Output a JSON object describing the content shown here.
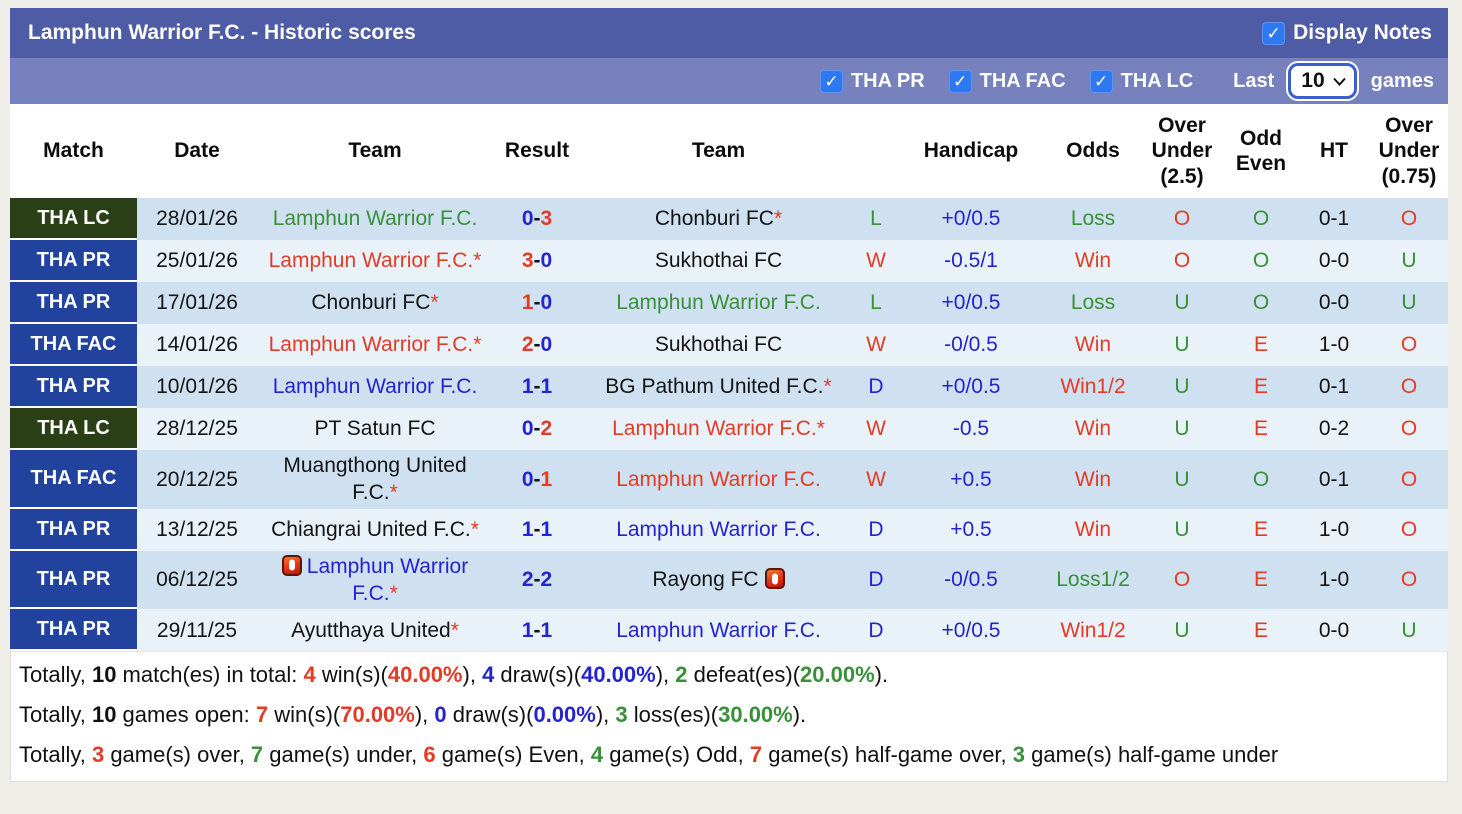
{
  "header": {
    "title": "Lamphun Warrior F.C. - Historic scores",
    "display_notes_label": "Display Notes",
    "display_notes_checked": true
  },
  "icons": {
    "checkmark": "✓",
    "red_card": "red-card-booking-icon"
  },
  "filters": {
    "leagues": [
      {
        "label": "THA PR",
        "checked": true
      },
      {
        "label": "THA FAC",
        "checked": true
      },
      {
        "label": "THA LC",
        "checked": true
      }
    ],
    "last_label": "Last",
    "last_value": "10",
    "games_label": "games"
  },
  "colors": {
    "bar_dark": "#4e5ca6",
    "bar_light": "#7681bd",
    "badge_blue": "#21439d",
    "badge_green": "#2a3f15",
    "row_dark": "#cfe1f0",
    "row_light": "#e9f2f9",
    "win_red": "#e33b26",
    "loss_green": "#389038",
    "draw_blue": "#2424cf"
  },
  "table": {
    "headers": [
      "Match",
      "Date",
      "Team",
      "Result",
      "Team",
      "",
      "Handicap",
      "Odds",
      "Over\nUnder\n(2.5)",
      "Odd\nEven",
      "HT",
      "Over\nUnder\n(0.75)"
    ],
    "rows": [
      {
        "league": "THA LC",
        "badge": "green",
        "date": "28/01/26",
        "home_name": "Lamphun Warrior F.C.",
        "home_star": "",
        "home_color": "green",
        "home_icon": false,
        "score_home": "0",
        "score_home_color": "blue",
        "score_away": "3",
        "score_away_color": "red",
        "away_name": "Chonburi FC",
        "away_star": "*",
        "away_color": "black",
        "away_icon": false,
        "wdl": "L",
        "wdl_color": "green",
        "handicap": "+0/0.5",
        "odds": "Loss",
        "odds_color": "green",
        "ou25": "O",
        "ou25_color": "red",
        "oe": "O",
        "oe_color": "green",
        "ht": "0-1",
        "ou075": "O",
        "ou075_color": "red"
      },
      {
        "league": "THA PR",
        "badge": "blue",
        "date": "25/01/26",
        "home_name": "Lamphun Warrior F.C.",
        "home_star": "*",
        "home_color": "red",
        "home_icon": false,
        "score_home": "3",
        "score_home_color": "red",
        "score_away": "0",
        "score_away_color": "blue",
        "away_name": "Sukhothai FC",
        "away_star": "",
        "away_color": "black",
        "away_icon": false,
        "wdl": "W",
        "wdl_color": "red",
        "handicap": "-0.5/1",
        "odds": "Win",
        "odds_color": "red",
        "ou25": "O",
        "ou25_color": "red",
        "oe": "O",
        "oe_color": "green",
        "ht": "0-0",
        "ou075": "U",
        "ou075_color": "green"
      },
      {
        "league": "THA PR",
        "badge": "blue",
        "date": "17/01/26",
        "home_name": "Chonburi FC",
        "home_star": "*",
        "home_color": "black",
        "home_icon": false,
        "score_home": "1",
        "score_home_color": "red",
        "score_away": "0",
        "score_away_color": "blue",
        "away_name": "Lamphun Warrior F.C.",
        "away_star": "",
        "away_color": "green",
        "away_icon": false,
        "wdl": "L",
        "wdl_color": "green",
        "handicap": "+0/0.5",
        "odds": "Loss",
        "odds_color": "green",
        "ou25": "U",
        "ou25_color": "green",
        "oe": "O",
        "oe_color": "green",
        "ht": "0-0",
        "ou075": "U",
        "ou075_color": "green"
      },
      {
        "league": "THA FAC",
        "badge": "blue",
        "date": "14/01/26",
        "home_name": "Lamphun Warrior F.C.",
        "home_star": "*",
        "home_color": "red",
        "home_icon": false,
        "score_home": "2",
        "score_home_color": "red",
        "score_away": "0",
        "score_away_color": "blue",
        "away_name": "Sukhothai FC",
        "away_star": "",
        "away_color": "black",
        "away_icon": false,
        "wdl": "W",
        "wdl_color": "red",
        "handicap": "-0/0.5",
        "odds": "Win",
        "odds_color": "red",
        "ou25": "U",
        "ou25_color": "green",
        "oe": "E",
        "oe_color": "red",
        "ht": "1-0",
        "ou075": "O",
        "ou075_color": "red"
      },
      {
        "league": "THA PR",
        "badge": "blue",
        "date": "10/01/26",
        "home_name": "Lamphun Warrior F.C.",
        "home_star": "",
        "home_color": "blue",
        "home_icon": false,
        "score_home": "1",
        "score_home_color": "blue",
        "score_away": "1",
        "score_away_color": "blue",
        "away_name": "BG Pathum United F.C.",
        "away_star": "*",
        "away_color": "black",
        "away_icon": false,
        "wdl": "D",
        "wdl_color": "blue",
        "handicap": "+0/0.5",
        "odds": "Win1/2",
        "odds_color": "red",
        "ou25": "U",
        "ou25_color": "green",
        "oe": "E",
        "oe_color": "red",
        "ht": "0-1",
        "ou075": "O",
        "ou075_color": "red"
      },
      {
        "league": "THA LC",
        "badge": "green",
        "date": "28/12/25",
        "home_name": "PT Satun FC",
        "home_star": "",
        "home_color": "black",
        "home_icon": false,
        "score_home": "0",
        "score_home_color": "blue",
        "score_away": "2",
        "score_away_color": "red",
        "away_name": "Lamphun Warrior F.C.",
        "away_star": "*",
        "away_color": "red",
        "away_icon": false,
        "wdl": "W",
        "wdl_color": "red",
        "handicap": "-0.5",
        "odds": "Win",
        "odds_color": "red",
        "ou25": "U",
        "ou25_color": "green",
        "oe": "E",
        "oe_color": "red",
        "ht": "0-2",
        "ou075": "O",
        "ou075_color": "red"
      },
      {
        "league": "THA FAC",
        "badge": "blue",
        "date": "20/12/25",
        "home_name": "Muangthong United F.C.",
        "home_star": "*",
        "home_color": "black",
        "home_icon": false,
        "score_home": "0",
        "score_home_color": "blue",
        "score_away": "1",
        "score_away_color": "red",
        "away_name": "Lamphun Warrior F.C.",
        "away_star": "",
        "away_color": "red",
        "away_icon": false,
        "wdl": "W",
        "wdl_color": "red",
        "handicap": "+0.5",
        "odds": "Win",
        "odds_color": "red",
        "ou25": "U",
        "ou25_color": "green",
        "oe": "O",
        "oe_color": "green",
        "ht": "0-1",
        "ou075": "O",
        "ou075_color": "red"
      },
      {
        "league": "THA PR",
        "badge": "blue",
        "date": "13/12/25",
        "home_name": "Chiangrai United F.C.",
        "home_star": "*",
        "home_color": "black",
        "home_icon": false,
        "score_home": "1",
        "score_home_color": "blue",
        "score_away": "1",
        "score_away_color": "blue",
        "away_name": "Lamphun Warrior F.C.",
        "away_star": "",
        "away_color": "blue",
        "away_icon": false,
        "wdl": "D",
        "wdl_color": "blue",
        "handicap": "+0.5",
        "odds": "Win",
        "odds_color": "red",
        "ou25": "U",
        "ou25_color": "green",
        "oe": "E",
        "oe_color": "red",
        "ht": "1-0",
        "ou075": "O",
        "ou075_color": "red"
      },
      {
        "league": "THA PR",
        "badge": "blue",
        "date": "06/12/25",
        "home_name": "Lamphun Warrior F.C.",
        "home_star": "*",
        "home_color": "blue",
        "home_icon": true,
        "score_home": "2",
        "score_home_color": "blue",
        "score_away": "2",
        "score_away_color": "blue",
        "away_name": "Rayong FC",
        "away_star": "",
        "away_color": "black",
        "away_icon": true,
        "wdl": "D",
        "wdl_color": "blue",
        "handicap": "-0/0.5",
        "odds": "Loss1/2",
        "odds_color": "green",
        "ou25": "O",
        "ou25_color": "red",
        "oe": "E",
        "oe_color": "red",
        "ht": "1-0",
        "ou075": "O",
        "ou075_color": "red"
      },
      {
        "league": "THA PR",
        "badge": "blue",
        "date": "29/11/25",
        "home_name": "Ayutthaya United",
        "home_star": "*",
        "home_color": "black",
        "home_icon": false,
        "score_home": "1",
        "score_home_color": "blue",
        "score_away": "1",
        "score_away_color": "blue",
        "away_name": "Lamphun Warrior F.C.",
        "away_star": "",
        "away_color": "blue",
        "away_icon": false,
        "wdl": "D",
        "wdl_color": "blue",
        "handicap": "+0/0.5",
        "odds": "Win1/2",
        "odds_color": "red",
        "ou25": "U",
        "ou25_color": "green",
        "oe": "E",
        "oe_color": "red",
        "ht": "0-0",
        "ou075": "U",
        "ou075_color": "green"
      }
    ]
  },
  "summary": {
    "line1": [
      {
        "t": "Totally, "
      },
      {
        "t": "10",
        "b": 1
      },
      {
        "t": " match(es) in total: "
      },
      {
        "t": "4",
        "c": "red",
        "b": 1
      },
      {
        "t": " win(s)("
      },
      {
        "t": "40.00%",
        "c": "red",
        "b": 1
      },
      {
        "t": "), "
      },
      {
        "t": "4",
        "c": "blue",
        "b": 1
      },
      {
        "t": " draw(s)("
      },
      {
        "t": "40.00%",
        "c": "blue",
        "b": 1
      },
      {
        "t": "), "
      },
      {
        "t": "2",
        "c": "green",
        "b": 1
      },
      {
        "t": " defeat(es)("
      },
      {
        "t": "20.00%",
        "c": "green",
        "b": 1
      },
      {
        "t": ")."
      }
    ],
    "line2": [
      {
        "t": "Totally, "
      },
      {
        "t": "10",
        "b": 1
      },
      {
        "t": " games open: "
      },
      {
        "t": "7",
        "c": "red",
        "b": 1
      },
      {
        "t": " win(s)("
      },
      {
        "t": "70.00%",
        "c": "red",
        "b": 1
      },
      {
        "t": "), "
      },
      {
        "t": "0",
        "c": "blue",
        "b": 1
      },
      {
        "t": " draw(s)("
      },
      {
        "t": "0.00%",
        "c": "blue",
        "b": 1
      },
      {
        "t": "), "
      },
      {
        "t": "3",
        "c": "green",
        "b": 1
      },
      {
        "t": " loss(es)("
      },
      {
        "t": "30.00%",
        "c": "green",
        "b": 1
      },
      {
        "t": ")."
      }
    ],
    "line3": [
      {
        "t": "Totally, "
      },
      {
        "t": "3",
        "c": "red",
        "b": 1
      },
      {
        "t": " game(s) over, "
      },
      {
        "t": "7",
        "c": "green",
        "b": 1
      },
      {
        "t": " game(s) under, "
      },
      {
        "t": "6",
        "c": "red",
        "b": 1
      },
      {
        "t": " game(s) Even, "
      },
      {
        "t": "4",
        "c": "green",
        "b": 1
      },
      {
        "t": " game(s) Odd, "
      },
      {
        "t": "7",
        "c": "red",
        "b": 1
      },
      {
        "t": " game(s) half-game over, "
      },
      {
        "t": "3",
        "c": "green",
        "b": 1
      },
      {
        "t": " game(s) half-game under"
      }
    ]
  }
}
